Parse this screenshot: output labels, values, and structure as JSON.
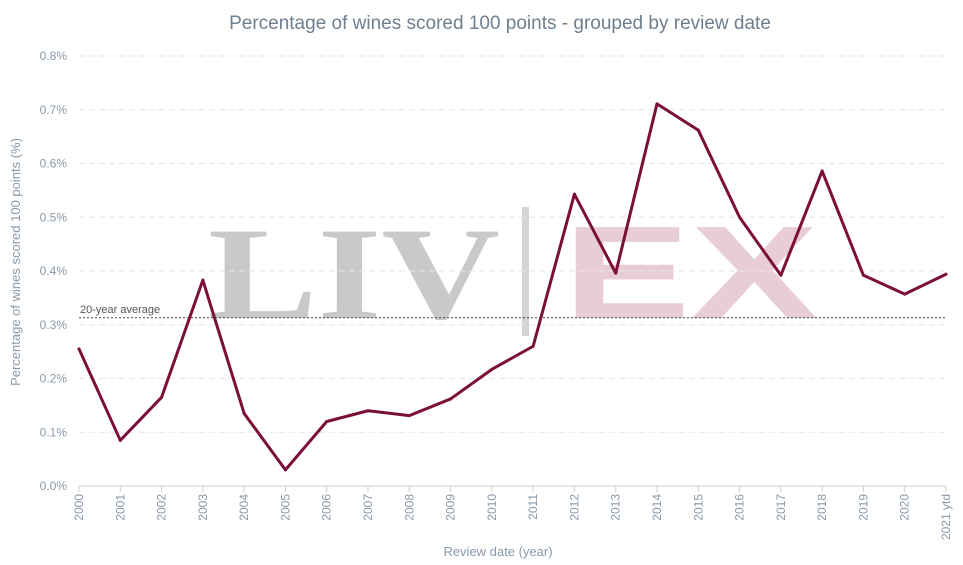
{
  "chart_data": {
    "type": "line",
    "title": "Percentage of wines scored 100 points - grouped by review date",
    "xlabel": "Review date (year)",
    "ylabel": "Percentage of wines scored 100 points (%)",
    "categories": [
      "2000",
      "2001",
      "2002",
      "2003",
      "2004",
      "2005",
      "2006",
      "2007",
      "2008",
      "2009",
      "2010",
      "2011",
      "2012",
      "2013",
      "2014",
      "2015",
      "2016",
      "2017",
      "2018",
      "2019",
      "2020",
      "2021 ytd"
    ],
    "series": [
      {
        "values": [
          0.255,
          0.085,
          0.165,
          0.383,
          0.135,
          0.03,
          0.12,
          0.14,
          0.131,
          0.162,
          0.217,
          0.26,
          0.543,
          0.396,
          0.711,
          0.662,
          0.5,
          0.392,
          0.586,
          0.392,
          0.357,
          0.394
        ],
        "color": "#7a0f3a"
      }
    ],
    "ylim": [
      0,
      0.8
    ],
    "yticks": [
      "0.0%",
      "0.1%",
      "0.2%",
      "0.3%",
      "0.4%",
      "0.5%",
      "0.6%",
      "0.7%",
      "0.8%"
    ],
    "reference_line": {
      "label": "20-year average",
      "value": 0.313
    },
    "grid": true,
    "watermark": {
      "left": "LIV",
      "right": "EX"
    }
  }
}
